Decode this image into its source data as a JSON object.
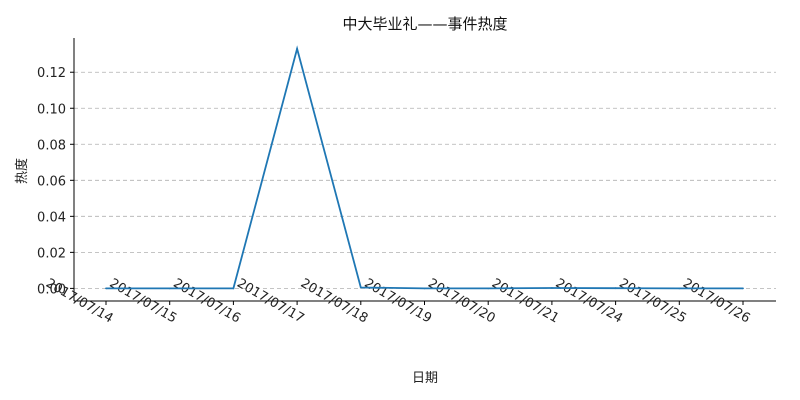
{
  "chart_data": {
    "type": "line",
    "title": "中大毕业礼——事件热度",
    "xlabel": "日期",
    "ylabel": "热度",
    "categories": [
      "2017/07/14",
      "2017/07/15",
      "2017/07/16",
      "2017/07/17",
      "2017/07/18",
      "2017/07/19",
      "2017/07/20",
      "2017/07/21",
      "2017/07/24",
      "2017/07/25",
      "2017/07/26"
    ],
    "series": [
      {
        "values": [
          0.0,
          0.0,
          0.0,
          0.133,
          0.0005,
          0.0,
          0.0,
          0.0002,
          0.0001,
          0.0,
          0.0
        ]
      }
    ],
    "ylim": [
      -0.007,
      0.139
    ],
    "yticks": [
      0.0,
      0.02,
      0.04,
      0.06,
      0.08,
      0.1,
      0.12
    ],
    "ytick_labels": [
      "0.00",
      "0.02",
      "0.04",
      "0.06",
      "0.08",
      "0.10",
      "0.12"
    ],
    "grid": "y-dashed",
    "line_color": "#1f77b4",
    "grid_color": "#b0b0b0"
  }
}
